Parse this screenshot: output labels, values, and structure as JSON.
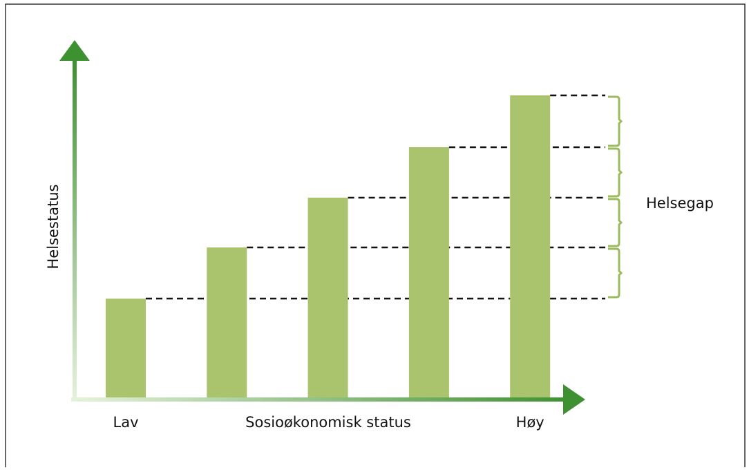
{
  "chart_data": {
    "type": "bar",
    "y_label": "Helsestatus",
    "x_label": "Sosioøkonomisk status",
    "annotation": "Helsegap",
    "categories": [
      "Lav",
      null,
      null,
      null,
      "Høy"
    ],
    "values": [
      143,
      217,
      289,
      362,
      437
    ],
    "color": "#a9c46c",
    "ylim": [
      0,
      500
    ]
  }
}
